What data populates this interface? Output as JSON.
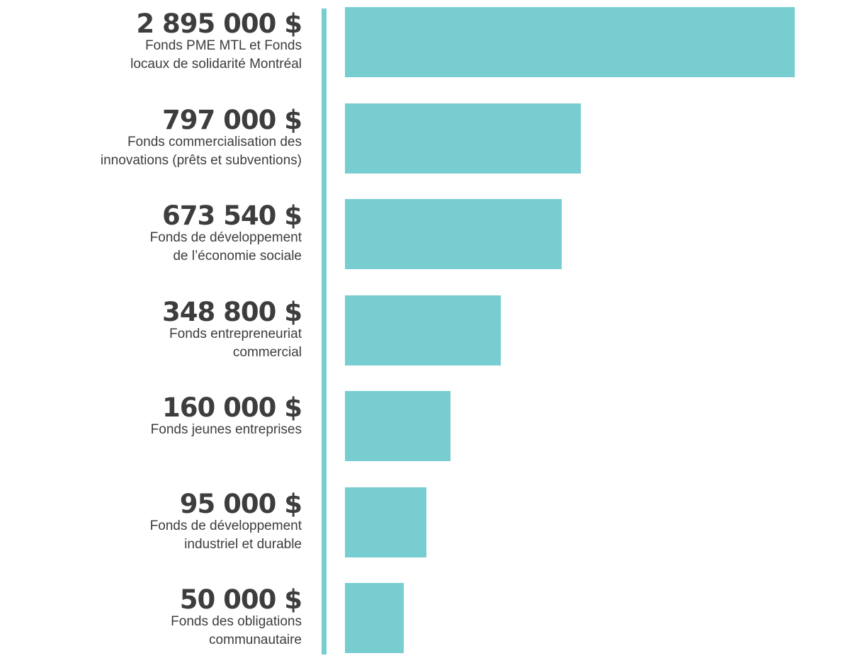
{
  "colors": {
    "bar": "#78cdd1",
    "axis": "#78cdd1",
    "text": "#3d3d3d"
  },
  "chart_data": {
    "type": "bar",
    "orientation": "horizontal",
    "title": "",
    "xlabel": "",
    "ylabel": "",
    "grid": false,
    "categories": [
      "Fonds PME MTL et Fonds locaux de solidarité Montréal",
      "Fonds commercialisation des innovations (prêts et subventions)",
      "Fonds de développement de l’économie sociale",
      "Fonds entrepreneuriat commercial",
      "Fonds jeunes entreprises",
      "Fonds de développement industriel et durable",
      "Fonds des obligations communautaire"
    ],
    "values": [
      2895000,
      797000,
      673540,
      348800,
      160000,
      95000,
      50000
    ],
    "value_labels": [
      "2 895 000 $",
      "797 000 $",
      "673 540 $",
      "348 800 $",
      "160 000 $",
      "95 000 $",
      "50 000 $"
    ],
    "description_lines": [
      [
        "Fonds PME MTL et Fonds",
        "locaux de solidarité Montréal"
      ],
      [
        "Fonds commercialisation des",
        "innovations (prêts et subventions)"
      ],
      [
        "Fonds de développement",
        "de l’économie sociale"
      ],
      [
        "Fonds entrepreneuriat",
        "commercial"
      ],
      [
        "Fonds jeunes entreprises"
      ],
      [
        "Fonds de développement",
        "industriel et durable"
      ],
      [
        "Fonds des obligations",
        "communautaire"
      ]
    ]
  }
}
